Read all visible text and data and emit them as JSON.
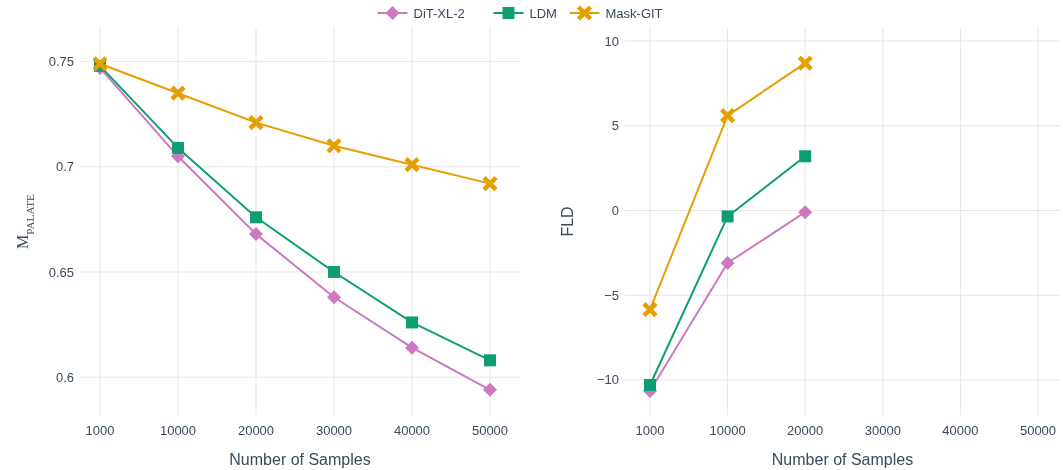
{
  "chart_data": [
    {
      "type": "line",
      "xlabel": "Number of Samples",
      "ylabel": "M$_{PALATE}$",
      "categories": [
        "1000",
        "10000",
        "20000",
        "30000",
        "40000",
        "50000"
      ],
      "ylim": [
        0.582,
        0.766
      ],
      "yticks": [
        0.6,
        0.65,
        0.7,
        0.75
      ],
      "grid": true,
      "legend": "top",
      "series": [
        {
          "name": "DiT-XL-2",
          "color": "#cc79c0",
          "marker": "diamond",
          "values": [
            0.747,
            0.705,
            0.668,
            0.638,
            0.614,
            0.594
          ]
        },
        {
          "name": "LDM",
          "color": "#0e9e73",
          "marker": "square",
          "values": [
            0.748,
            0.709,
            0.676,
            0.65,
            0.626,
            0.608
          ]
        },
        {
          "name": "Mask-GIT",
          "color": "#e69f00",
          "marker": "cross",
          "values": [
            0.749,
            0.735,
            0.721,
            0.71,
            0.701,
            0.692
          ]
        }
      ]
    },
    {
      "type": "line",
      "xlabel": "Number of Samples",
      "ylabel": "FLD",
      "categories": [
        "1000",
        "10000",
        "20000",
        "30000",
        "40000",
        "50000"
      ],
      "ylim": [
        -12.07,
        10.77
      ],
      "yticks": [
        {
          "value": -10,
          "label": "−10"
        },
        {
          "value": -5,
          "label": "−5"
        },
        0,
        5,
        10
      ],
      "grid": true,
      "series": [
        {
          "color": "#cc79c0",
          "marker": "diamond",
          "values": [
            -10.65,
            -3.1,
            -0.1,
            null,
            null,
            null
          ]
        },
        {
          "color": "#0e9e73",
          "marker": "square",
          "values": [
            -10.3,
            -0.35,
            3.2,
            null,
            null,
            null
          ]
        },
        {
          "color": "#e69f00",
          "marker": "cross",
          "values": [
            -5.85,
            5.6,
            8.7,
            null,
            null,
            null
          ]
        }
      ]
    }
  ]
}
